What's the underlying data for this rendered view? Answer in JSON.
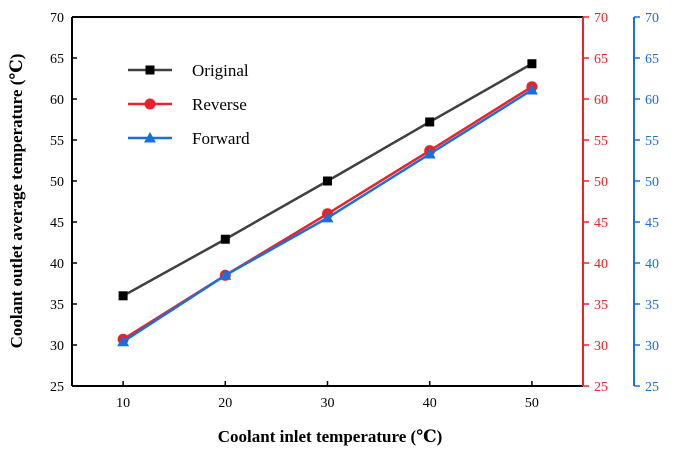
{
  "chart_data": {
    "type": "line",
    "xlabel": "Coolant inlet temperature (℃)",
    "ylabel": "Coolant outlet average temperature (℃)",
    "x": [
      10,
      20,
      30,
      40,
      50
    ],
    "xlim": [
      5,
      55
    ],
    "x_ticks": [
      "10",
      "20",
      "30",
      "40",
      "50"
    ],
    "ylim": [
      25,
      70
    ],
    "y_ticks": [
      "25",
      "30",
      "35",
      "40",
      "45",
      "50",
      "55",
      "60",
      "65",
      "70"
    ],
    "right_axes": [
      {
        "name": "red-axis",
        "color": "#e8232a",
        "ylim": [
          25,
          70
        ]
      },
      {
        "name": "blue-axis",
        "color": "#1a6fd8",
        "ylim": [
          25,
          70
        ]
      }
    ],
    "legend_position": "top-left",
    "series": [
      {
        "name": "Original",
        "color": "#404040",
        "marker": "square",
        "values": [
          36.0,
          42.9,
          50.0,
          57.2,
          64.3
        ]
      },
      {
        "name": "Reverse",
        "color": "#e8232a",
        "marker": "circle",
        "values": [
          30.7,
          38.5,
          46.0,
          53.7,
          61.5
        ]
      },
      {
        "name": "Forward",
        "color": "#1a6fd8",
        "marker": "triangle",
        "values": [
          30.4,
          38.5,
          45.5,
          53.3,
          61.1
        ]
      }
    ]
  }
}
